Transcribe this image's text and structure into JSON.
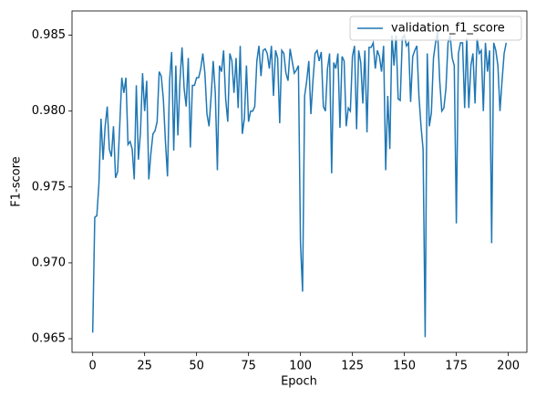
{
  "chart_data": {
    "type": "line",
    "xlabel": "Epoch",
    "ylabel": "F1-score",
    "x": [
      0,
      1,
      2,
      3,
      4,
      5,
      6,
      7,
      8,
      9,
      10,
      11,
      12,
      13,
      14,
      15,
      16,
      17,
      18,
      19,
      20,
      21,
      22,
      23,
      24,
      25,
      26,
      27,
      28,
      29,
      30,
      31,
      32,
      33,
      34,
      35,
      36,
      37,
      38,
      39,
      40,
      41,
      42,
      43,
      44,
      45,
      46,
      47,
      48,
      49,
      50,
      51,
      52,
      53,
      54,
      55,
      56,
      57,
      58,
      59,
      60,
      61,
      62,
      63,
      64,
      65,
      66,
      67,
      68,
      69,
      70,
      71,
      72,
      73,
      74,
      75,
      76,
      77,
      78,
      79,
      80,
      81,
      82,
      83,
      84,
      85,
      86,
      87,
      88,
      89,
      90,
      91,
      92,
      93,
      94,
      95,
      96,
      97,
      98,
      99,
      100,
      101,
      102,
      103,
      104,
      105,
      106,
      107,
      108,
      109,
      110,
      111,
      112,
      113,
      114,
      115,
      116,
      117,
      118,
      119,
      120,
      121,
      122,
      123,
      124,
      125,
      126,
      127,
      128,
      129,
      130,
      131,
      132,
      133,
      134,
      135,
      136,
      137,
      138,
      139,
      140,
      141,
      142,
      143,
      144,
      145,
      146,
      147,
      148,
      149,
      150,
      151,
      152,
      153,
      154,
      155,
      156,
      157,
      158,
      159,
      160,
      161,
      162,
      163,
      164,
      165,
      166,
      167,
      168,
      169,
      170,
      171,
      172,
      173,
      174,
      175,
      176,
      177,
      178,
      179,
      180,
      181,
      182,
      183,
      184,
      185,
      186,
      187,
      188,
      189,
      190,
      191,
      192,
      193,
      194,
      195,
      196,
      197,
      198,
      199
    ],
    "series": [
      {
        "name": "validation_f1_score",
        "color": "#1f77b4",
        "values": [
          0.9654,
          0.973,
          0.9731,
          0.9752,
          0.9795,
          0.9768,
          0.979,
          0.9803,
          0.9775,
          0.977,
          0.979,
          0.9756,
          0.976,
          0.979,
          0.9822,
          0.9812,
          0.9822,
          0.9778,
          0.978,
          0.9775,
          0.9755,
          0.9817,
          0.9768,
          0.9786,
          0.9825,
          0.98,
          0.982,
          0.9755,
          0.9772,
          0.9785,
          0.9787,
          0.9793,
          0.9826,
          0.9823,
          0.9808,
          0.978,
          0.9757,
          0.982,
          0.9839,
          0.9774,
          0.983,
          0.9784,
          0.982,
          0.9842,
          0.9815,
          0.9803,
          0.9835,
          0.9776,
          0.9817,
          0.9817,
          0.9822,
          0.9822,
          0.9828,
          0.9838,
          0.9825,
          0.9798,
          0.979,
          0.981,
          0.9833,
          0.9812,
          0.9761,
          0.983,
          0.9826,
          0.984,
          0.9808,
          0.9793,
          0.9838,
          0.9833,
          0.9812,
          0.9835,
          0.9802,
          0.9843,
          0.9785,
          0.9795,
          0.983,
          0.9793,
          0.98,
          0.98,
          0.9803,
          0.9833,
          0.9843,
          0.9823,
          0.984,
          0.9841,
          0.9838,
          0.9828,
          0.9843,
          0.981,
          0.984,
          0.9835,
          0.9792,
          0.984,
          0.9838,
          0.9825,
          0.982,
          0.9841,
          0.9833,
          0.9825,
          0.9827,
          0.983,
          0.9713,
          0.9681,
          0.981,
          0.982,
          0.9833,
          0.9798,
          0.982,
          0.9838,
          0.984,
          0.9833,
          0.9839,
          0.9803,
          0.98,
          0.9828,
          0.9838,
          0.9759,
          0.9832,
          0.9828,
          0.9838,
          0.9789,
          0.9836,
          0.9833,
          0.979,
          0.9802,
          0.98,
          0.9836,
          0.9843,
          0.9788,
          0.984,
          0.9832,
          0.9805,
          0.984,
          0.9786,
          0.9842,
          0.9842,
          0.9845,
          0.9828,
          0.984,
          0.9836,
          0.9826,
          0.9843,
          0.9761,
          0.981,
          0.9775,
          0.985,
          0.983,
          0.985,
          0.9808,
          0.9807,
          0.9848,
          0.985,
          0.9843,
          0.9845,
          0.9806,
          0.9836,
          0.984,
          0.9843,
          0.981,
          0.979,
          0.9775,
          0.9651,
          0.9838,
          0.979,
          0.9799,
          0.9835,
          0.9845,
          0.9852,
          0.982,
          0.98,
          0.9802,
          0.9815,
          0.9845,
          0.985,
          0.9835,
          0.983,
          0.9726,
          0.9838,
          0.9845,
          0.9845,
          0.9802,
          0.9848,
          0.9802,
          0.983,
          0.9838,
          0.9805,
          0.9848,
          0.9838,
          0.984,
          0.98,
          0.9845,
          0.9826,
          0.984,
          0.9713,
          0.9845,
          0.984,
          0.983,
          0.98,
          0.982,
          0.9838,
          0.9845
        ]
      }
    ],
    "xlim": [
      -9.95,
      208.95
    ],
    "xticks": [
      0,
      25,
      50,
      75,
      100,
      125,
      150,
      175,
      200
    ],
    "ylim": [
      0.9641,
      0.9866
    ],
    "yticks": [
      0.965,
      {
        "value": 0.97,
        "label": "0.970"
      },
      0.975,
      {
        "value": 0.98,
        "label": "0.980"
      },
      0.985
    ],
    "legend": "upper right",
    "grid": false
  }
}
